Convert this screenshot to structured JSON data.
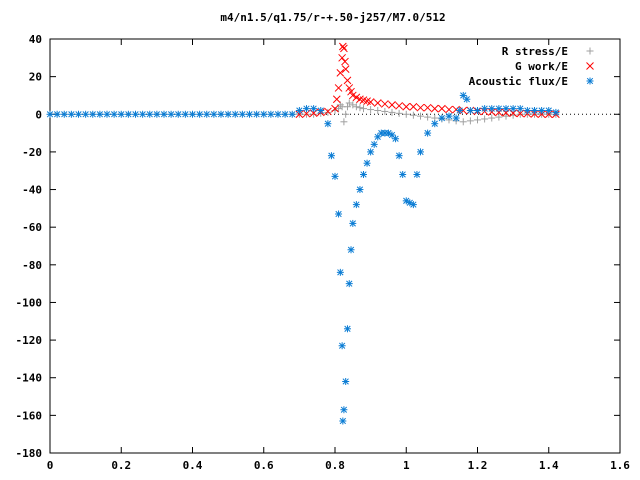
{
  "chart_data": {
    "type": "scatter",
    "title": "m4/n1.5/q1.75/r-+.50-j257/M7.0/512",
    "xlabel": "",
    "ylabel": "",
    "xlim": [
      0,
      1.6
    ],
    "ylim": [
      -180,
      40
    ],
    "xticks": [
      0,
      0.2,
      0.4,
      0.6,
      0.8,
      1,
      1.2,
      1.4,
      1.6
    ],
    "yticks": [
      40,
      20,
      0,
      -20,
      -40,
      -60,
      -80,
      -100,
      -120,
      -140,
      -160,
      -180
    ],
    "xtick_labels": [
      "0",
      "0.2",
      "0.4",
      "0.6",
      "0.8",
      "1",
      "1.2",
      "1.4",
      "1.6"
    ],
    "ytick_labels": [
      "40",
      "20",
      "0",
      "-20",
      "-40",
      "-60",
      "-80",
      "-100",
      "-120",
      "-140",
      "-160",
      "-180"
    ],
    "grid": false,
    "legend_position": "top-right",
    "series": [
      {
        "name": "R stress/E",
        "marker": "plus",
        "color": "#a0a0a0",
        "x": [
          0.7,
          0.72,
          0.74,
          0.76,
          0.78,
          0.8,
          0.81,
          0.815,
          0.82,
          0.825,
          0.83,
          0.835,
          0.84,
          0.85,
          0.86,
          0.87,
          0.88,
          0.9,
          0.92,
          0.94,
          0.96,
          0.98,
          1.0,
          1.02,
          1.04,
          1.06,
          1.08,
          1.1,
          1.12,
          1.14,
          1.16,
          1.18,
          1.2,
          1.22,
          1.24,
          1.26,
          1.28,
          1.3,
          1.32,
          1.34,
          1.36,
          1.38,
          1.4,
          1.42
        ],
        "y": [
          0,
          0,
          0,
          0.5,
          1,
          2,
          3,
          5,
          4,
          -4,
          0,
          4,
          6,
          5,
          4,
          3.5,
          3,
          2.5,
          2,
          1.5,
          1,
          0.5,
          0,
          -0.5,
          -1,
          -1.5,
          -2,
          -2.5,
          -3,
          -3.5,
          -4,
          -3.5,
          -3,
          -2.5,
          -2,
          -1.5,
          -1,
          -0.5,
          0,
          0,
          0,
          0,
          0,
          0
        ]
      },
      {
        "name": "G work/E",
        "marker": "cross",
        "color": "#ff0000",
        "x": [
          0.7,
          0.72,
          0.74,
          0.76,
          0.78,
          0.8,
          0.805,
          0.81,
          0.815,
          0.82,
          0.822,
          0.825,
          0.828,
          0.83,
          0.835,
          0.84,
          0.845,
          0.85,
          0.86,
          0.87,
          0.88,
          0.89,
          0.9,
          0.92,
          0.94,
          0.96,
          0.98,
          1.0,
          1.02,
          1.04,
          1.06,
          1.08,
          1.1,
          1.12,
          1.14,
          1.16,
          1.18,
          1.2,
          1.22,
          1.24,
          1.26,
          1.28,
          1.3,
          1.32,
          1.34,
          1.36,
          1.38,
          1.4,
          1.42
        ],
        "y": [
          0,
          0.3,
          0.6,
          1,
          1.5,
          3,
          8,
          14,
          22,
          30,
          36,
          35,
          28,
          24,
          18,
          14,
          12,
          10,
          9,
          8,
          7.5,
          7,
          6.5,
          6,
          5.5,
          5,
          4.5,
          4,
          4,
          3.5,
          3.5,
          3,
          3,
          2.5,
          2.5,
          2,
          2,
          1.5,
          1.5,
          1.2,
          1,
          0.8,
          0.6,
          0.4,
          0.3,
          0.2,
          0.1,
          0,
          0
        ]
      },
      {
        "name": "Acoustic flux/E",
        "marker": "star",
        "color": "#0a7cd4",
        "x": [
          0.0,
          0.02,
          0.04,
          0.06,
          0.08,
          0.1,
          0.12,
          0.14,
          0.16,
          0.18,
          0.2,
          0.22,
          0.24,
          0.26,
          0.28,
          0.3,
          0.32,
          0.34,
          0.36,
          0.38,
          0.4,
          0.42,
          0.44,
          0.46,
          0.48,
          0.5,
          0.52,
          0.54,
          0.56,
          0.58,
          0.6,
          0.62,
          0.64,
          0.66,
          0.68,
          0.7,
          0.72,
          0.74,
          0.76,
          0.78,
          0.79,
          0.8,
          0.81,
          0.815,
          0.82,
          0.822,
          0.825,
          0.83,
          0.835,
          0.84,
          0.845,
          0.85,
          0.86,
          0.87,
          0.88,
          0.89,
          0.9,
          0.91,
          0.92,
          0.93,
          0.94,
          0.95,
          0.96,
          0.97,
          0.98,
          0.99,
          1.0,
          1.01,
          1.02,
          1.03,
          1.04,
          1.06,
          1.08,
          1.1,
          1.12,
          1.14,
          1.15,
          1.16,
          1.17,
          1.18,
          1.2,
          1.22,
          1.24,
          1.26,
          1.28,
          1.3,
          1.32,
          1.34,
          1.36,
          1.38,
          1.4,
          1.42
        ],
        "y": [
          0,
          0,
          0,
          0,
          0,
          0,
          0,
          0,
          0,
          0,
          0,
          0,
          0,
          0,
          0,
          0,
          0,
          0,
          0,
          0,
          0,
          0,
          0,
          0,
          0,
          0,
          0,
          0,
          0,
          0,
          0,
          0,
          0,
          0,
          0,
          2,
          3,
          3,
          2,
          -5,
          -22,
          -33,
          -53,
          -84,
          -123,
          -163,
          -157,
          -142,
          -114,
          -90,
          -72,
          -58,
          -48,
          -40,
          -32,
          -26,
          -20,
          -16,
          -12,
          -10,
          -10,
          -10,
          -11,
          -13,
          -22,
          -32,
          -46,
          -47,
          -48,
          -32,
          -20,
          -10,
          -5,
          -2,
          -1,
          -2,
          2,
          10,
          8,
          2,
          2,
          3,
          3,
          3,
          3,
          3,
          3,
          2,
          2,
          2,
          2,
          1
        ]
      }
    ]
  }
}
